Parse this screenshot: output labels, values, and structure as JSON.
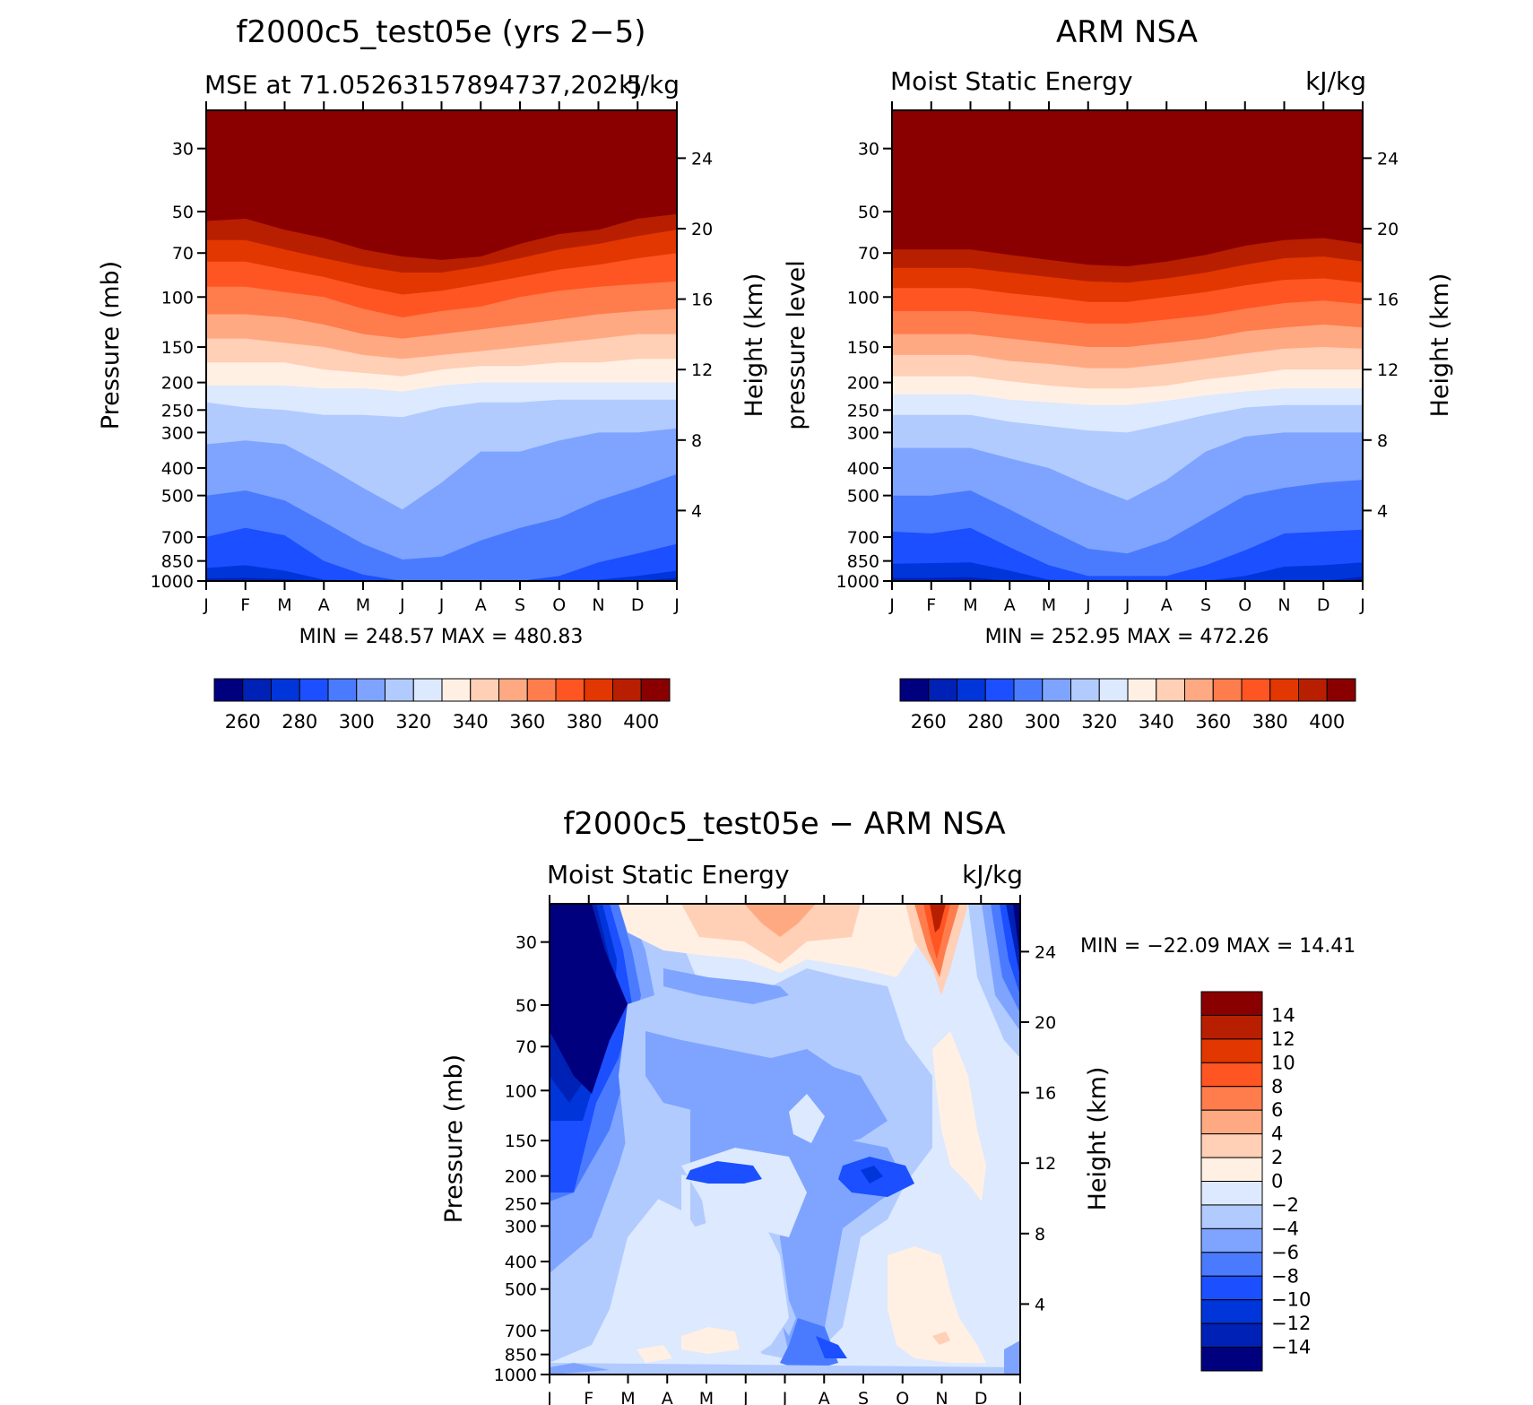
{
  "panels": [
    {
      "title": "f2000c5_test05e (yrs 2−5)",
      "left_string": "MSE at 71.05263157894737,202.5",
      "right_string": "kJ/kg",
      "y_label_left": "Pressure (mb)",
      "y_label_right": "Height (km)",
      "min_max": "MIN =  248.57 MAX =  480.83"
    },
    {
      "title": "ARM NSA",
      "left_string": "Moist Static Energy",
      "right_string": "kJ/kg",
      "y_label_left": "pressure level",
      "y_label_right": "Height (km)",
      "min_max": "MIN =  252.95 MAX =  472.26"
    },
    {
      "title": "f2000c5_test05e − ARM NSA",
      "left_string": "Moist Static Energy",
      "right_string": "kJ/kg",
      "y_label_left": "Pressure (mb)",
      "y_label_right": "Height (km)",
      "min_max": "MIN = −22.09 MAX =   14.41"
    }
  ],
  "colorbar_mse": {
    "labels": [
      "260",
      "280",
      "300",
      "320",
      "340",
      "360",
      "380",
      "400"
    ],
    "colors": [
      "#00007f",
      "#0021b5",
      "#0035d9",
      "#1b4fff",
      "#4a7bff",
      "#7ea4ff",
      "#b1cbff",
      "#dce9ff",
      "#fff0e3",
      "#ffcfb6",
      "#ffa983",
      "#ff7c4d",
      "#ff5522",
      "#e23700",
      "#b81f00",
      "#8a0000"
    ]
  },
  "colorbar_diff": {
    "labels": [
      "14",
      "12",
      "10",
      "8",
      "6",
      "4",
      "2",
      "0",
      "−2",
      "−4",
      "−6",
      "−8",
      "−10",
      "−12",
      "−14"
    ],
    "colors": [
      "#8a0000",
      "#b81f00",
      "#e23700",
      "#ff5522",
      "#ff7c4d",
      "#ffa983",
      "#ffcfb6",
      "#fff0e3",
      "#dce9ff",
      "#b1cbff",
      "#7ea4ff",
      "#4a7bff",
      "#1b4fff",
      "#0035d9",
      "#0021b5",
      "#00007f"
    ]
  },
  "chart_data": [
    {
      "type": "heatmap",
      "title": "f2000c5_test05e (yrs 2−5)",
      "subtitle": "MSE at 71.05263157894737,202.5",
      "units": "kJ/kg",
      "x": [
        "J",
        "F",
        "M",
        "A",
        "M",
        "J",
        "J",
        "A",
        "S",
        "O",
        "N",
        "D",
        "J"
      ],
      "y_pressure_ticks": [
        30,
        50,
        70,
        100,
        150,
        200,
        250,
        300,
        400,
        500,
        700,
        850,
        1000
      ],
      "y_height_ticks": [
        4,
        8,
        12,
        16,
        20,
        24
      ],
      "levels": [
        260,
        270,
        280,
        290,
        300,
        310,
        320,
        330,
        340,
        350,
        360,
        370,
        380,
        390,
        400
      ],
      "xlabel": "",
      "ylabel": "Pressure (mb)",
      "ylabel_right": "Height (km)",
      "min": 248.57,
      "max": 480.83,
      "boundaries_pressure_mb": [
        [
          1000,
          1000,
          1000,
          1000,
          1000,
          1000,
          1000,
          1000,
          1000,
          1000,
          1000,
          1000,
          1000
        ],
        [
          980,
          975,
          985,
          1000,
          1000,
          1000,
          1000,
          1000,
          1000,
          1000,
          1000,
          1000,
          975
        ],
        [
          900,
          880,
          920,
          990,
          1000,
          1000,
          1000,
          1000,
          1000,
          1000,
          990,
          960,
          920
        ],
        [
          700,
          650,
          690,
          850,
          950,
          1000,
          1000,
          1000,
          1000,
          960,
          860,
          800,
          740
        ],
        [
          500,
          480,
          520,
          620,
          740,
          840,
          820,
          720,
          650,
          600,
          520,
          470,
          420
        ],
        [
          330,
          320,
          330,
          390,
          470,
          560,
          450,
          350,
          350,
          320,
          300,
          300,
          290
        ],
        [
          235,
          245,
          250,
          260,
          260,
          265,
          245,
          235,
          235,
          230,
          230,
          230,
          230
        ],
        [
          205,
          205,
          205,
          210,
          210,
          215,
          205,
          200,
          200,
          200,
          200,
          200,
          200
        ],
        [
          170,
          170,
          170,
          180,
          185,
          190,
          180,
          175,
          175,
          170,
          170,
          165,
          165
        ],
        [
          140,
          140,
          145,
          150,
          160,
          165,
          160,
          155,
          150,
          145,
          140,
          135,
          135
        ],
        [
          115,
          115,
          118,
          125,
          135,
          140,
          135,
          130,
          125,
          120,
          115,
          112,
          110
        ],
        [
          92,
          92,
          96,
          100,
          110,
          118,
          112,
          108,
          100,
          95,
          92,
          90,
          88
        ],
        [
          75,
          75,
          80,
          85,
          92,
          98,
          95,
          90,
          85,
          80,
          77,
          73,
          70
        ],
        [
          63,
          63,
          68,
          73,
          78,
          82,
          82,
          78,
          73,
          68,
          65,
          61,
          58
        ],
        [
          54,
          53,
          58,
          62,
          68,
          72,
          74,
          72,
          65,
          60,
          58,
          53,
          51
        ]
      ]
    },
    {
      "type": "heatmap",
      "title": "ARM NSA",
      "subtitle": "Moist Static Energy",
      "units": "kJ/kg",
      "x": [
        "J",
        "F",
        "M",
        "A",
        "M",
        "J",
        "J",
        "A",
        "S",
        "O",
        "N",
        "D",
        "J"
      ],
      "y_pressure_ticks": [
        30,
        50,
        70,
        100,
        150,
        200,
        250,
        300,
        400,
        500,
        700,
        850,
        1000
      ],
      "y_height_ticks": [
        4,
        8,
        12,
        16,
        20,
        24
      ],
      "levels": [
        260,
        270,
        280,
        290,
        300,
        310,
        320,
        330,
        340,
        350,
        360,
        370,
        380,
        390,
        400
      ],
      "xlabel": "",
      "ylabel": "pressure level",
      "ylabel_right": "Height (km)",
      "min": 252.95,
      "max": 472.26,
      "boundaries_pressure_mb": [
        [
          1000,
          1000,
          1000,
          1000,
          1000,
          1000,
          1000,
          1000,
          1000,
          1000,
          1000,
          1000,
          990
        ],
        [
          975,
          975,
          970,
          1000,
          1000,
          1000,
          1000,
          1000,
          1000,
          1000,
          1000,
          1000,
          965
        ],
        [
          870,
          865,
          860,
          920,
          990,
          1000,
          1000,
          1000,
          1000,
          960,
          890,
          880,
          860
        ],
        [
          670,
          680,
          650,
          760,
          880,
          960,
          960,
          960,
          880,
          780,
          680,
          670,
          660
        ],
        [
          500,
          500,
          480,
          560,
          660,
          770,
          800,
          720,
          600,
          500,
          470,
          450,
          440
        ],
        [
          340,
          340,
          340,
          370,
          400,
          460,
          520,
          440,
          350,
          310,
          300,
          300,
          300
        ],
        [
          260,
          260,
          260,
          275,
          285,
          295,
          300,
          280,
          260,
          245,
          240,
          240,
          240
        ],
        [
          220,
          220,
          220,
          230,
          235,
          240,
          240,
          232,
          222,
          215,
          210,
          210,
          210
        ],
        [
          190,
          190,
          190,
          198,
          205,
          210,
          210,
          205,
          195,
          188,
          180,
          180,
          180
        ],
        [
          160,
          160,
          160,
          168,
          172,
          178,
          178,
          172,
          165,
          158,
          152,
          150,
          152
        ],
        [
          135,
          135,
          135,
          140,
          145,
          150,
          150,
          145,
          140,
          132,
          128,
          125,
          128
        ],
        [
          112,
          112,
          112,
          116,
          120,
          124,
          124,
          120,
          116,
          110,
          105,
          103,
          106
        ],
        [
          93,
          93,
          93,
          97,
          100,
          104,
          104,
          100,
          96,
          91,
          87,
          86,
          89
        ],
        [
          79,
          79,
          79,
          82,
          85,
          88,
          89,
          86,
          82,
          77,
          73,
          72,
          75
        ],
        [
          68,
          68,
          68,
          71,
          74,
          77,
          78,
          75,
          71,
          66,
          63,
          62,
          65
        ]
      ]
    },
    {
      "type": "heatmap",
      "title": "f2000c5_test05e − ARM NSA",
      "subtitle": "Moist Static Energy",
      "units": "kJ/kg",
      "x": [
        "J",
        "F",
        "M",
        "A",
        "M",
        "J",
        "J",
        "A",
        "S",
        "O",
        "N",
        "D",
        "J"
      ],
      "y_pressure_ticks": [
        30,
        50,
        70,
        100,
        150,
        200,
        250,
        300,
        400,
        500,
        700,
        850,
        1000
      ],
      "y_height_ticks": [
        4,
        8,
        12,
        16,
        20,
        24
      ],
      "levels": [
        -14,
        -12,
        -10,
        -8,
        -6,
        -4,
        -2,
        0,
        2,
        4,
        6,
        8,
        10,
        12,
        14
      ],
      "xlabel": "",
      "ylabel": "Pressure (mb)",
      "ylabel_right": "Height (km)",
      "min": -22.09,
      "max": 14.41
    }
  ]
}
